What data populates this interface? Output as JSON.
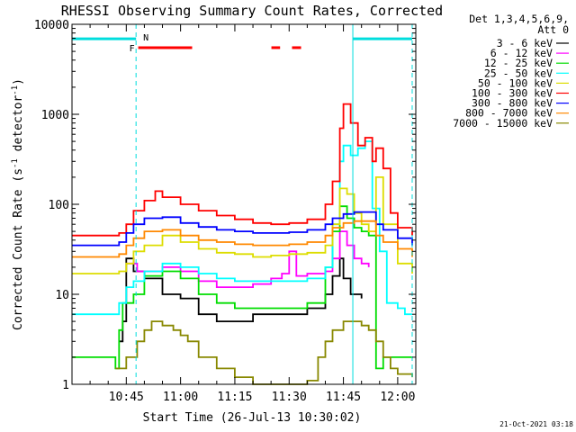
{
  "chart_data": {
    "type": "line",
    "title": "RHESSI Observing Summary Count Rates, Corrected",
    "xlabel": "Start Time (26-Jul-13 10:30:02)",
    "ylabel_main": "Corrected Count Rate (s",
    "ylabel_sup1": "-1",
    "ylabel_mid": " detector",
    "ylabel_sup2": "-1",
    "ylabel_end": ")",
    "yscale": "log",
    "ylim": [
      1,
      10000
    ],
    "xlim_minutes": [
      0,
      95
    ],
    "x_ticks": [
      {
        "m": 15,
        "label": "10:45"
      },
      {
        "m": 30,
        "label": "11:00"
      },
      {
        "m": 45,
        "label": "11:15"
      },
      {
        "m": 60,
        "label": "11:30"
      },
      {
        "m": 75,
        "label": "11:45"
      },
      {
        "m": 90,
        "label": "12:00"
      }
    ],
    "y_ticks": [
      {
        "v": 1,
        "label": "1"
      },
      {
        "v": 10,
        "label": "10"
      },
      {
        "v": 100,
        "label": "100"
      },
      {
        "v": 1000,
        "label": "1000"
      },
      {
        "v": 10000,
        "label": "10000"
      }
    ],
    "legend_header": [
      "Det 1,3,4,5,6,9,",
      "Att 0"
    ],
    "legend_position": "top-right-outside",
    "series": [
      {
        "name": "3 - 6 keV",
        "color": "#000000",
        "x": [
          0,
          11,
          13,
          14,
          15,
          17,
          20,
          25,
          30,
          35,
          40,
          45,
          50,
          55,
          60,
          65,
          70,
          72,
          74,
          75,
          77,
          80,
          82
        ],
        "y": [
          null,
          null,
          3,
          5,
          25,
          18,
          15,
          10,
          9,
          6,
          5,
          5,
          6,
          6,
          6,
          7,
          10,
          16,
          25,
          15,
          10,
          9,
          null
        ]
      },
      {
        "name": "6 - 12 keV",
        "color": "#ff00ff",
        "x": [
          15,
          18,
          20,
          25,
          30,
          35,
          40,
          45,
          50,
          55,
          58,
          60,
          62,
          65,
          70,
          72,
          74,
          76,
          78,
          80,
          82
        ],
        "y": [
          22,
          18,
          18,
          20,
          18,
          14,
          12,
          12,
          13,
          15,
          17,
          30,
          16,
          17,
          18,
          25,
          50,
          35,
          25,
          22,
          20
        ]
      },
      {
        "name": "12 - 25 keV",
        "color": "#00dd00",
        "x": [
          0,
          11,
          12,
          13,
          14,
          17,
          20,
          25,
          30,
          35,
          40,
          45,
          50,
          55,
          60,
          65,
          70,
          72,
          74,
          76,
          78,
          80,
          82,
          84,
          86,
          90,
          94
        ],
        "y": [
          2,
          2,
          1.5,
          4,
          8,
          10,
          16,
          18,
          15,
          10,
          8,
          7,
          7,
          7,
          7,
          8,
          20,
          50,
          95,
          70,
          55,
          50,
          45,
          1.5,
          2,
          2,
          2
        ]
      },
      {
        "name": "25 - 50 keV",
        "color": "#00ffff",
        "x": [
          0,
          11,
          13,
          15,
          17,
          20,
          25,
          30,
          35,
          40,
          45,
          50,
          55,
          60,
          65,
          70,
          72,
          74,
          75,
          77,
          79,
          81,
          83,
          85,
          87,
          90,
          92,
          94
        ],
        "y": [
          6,
          6,
          8,
          12,
          14,
          18,
          22,
          20,
          17,
          15,
          14,
          14,
          14,
          14,
          15,
          20,
          60,
          300,
          450,
          350,
          420,
          500,
          90,
          30,
          8,
          7,
          6,
          6
        ]
      },
      {
        "name": "50 - 100 keV",
        "color": "#dddd00",
        "x": [
          0,
          11,
          13,
          15,
          17,
          20,
          25,
          30,
          35,
          40,
          45,
          50,
          55,
          60,
          65,
          70,
          72,
          74,
          76,
          78,
          80,
          82,
          84,
          86,
          90,
          94
        ],
        "y": [
          17,
          17,
          18,
          22,
          30,
          35,
          45,
          38,
          32,
          29,
          28,
          26,
          27,
          28,
          29,
          35,
          60,
          150,
          130,
          80,
          60,
          50,
          200,
          60,
          22,
          17
        ]
      },
      {
        "name": "100 - 300 keV",
        "color": "#ff0000",
        "x": [
          0,
          11,
          13,
          15,
          17,
          20,
          23,
          25,
          30,
          35,
          40,
          45,
          50,
          55,
          60,
          65,
          70,
          72,
          74,
          75,
          77,
          79,
          81,
          83,
          84,
          86,
          88,
          90,
          94
        ],
        "y": [
          45,
          45,
          48,
          60,
          85,
          110,
          140,
          120,
          100,
          85,
          75,
          68,
          62,
          60,
          62,
          68,
          100,
          180,
          700,
          1300,
          800,
          450,
          550,
          300,
          420,
          250,
          80,
          55,
          45
        ]
      },
      {
        "name": "300 - 800 keV",
        "color": "#0000ff",
        "x": [
          0,
          11,
          13,
          15,
          17,
          20,
          25,
          30,
          35,
          40,
          45,
          50,
          55,
          60,
          65,
          70,
          72,
          75,
          78,
          82,
          84,
          86,
          90,
          94
        ],
        "y": [
          35,
          35,
          38,
          48,
          60,
          70,
          72,
          62,
          56,
          52,
          50,
          48,
          48,
          49,
          52,
          60,
          70,
          78,
          82,
          82,
          60,
          52,
          42,
          35
        ]
      },
      {
        "name": "800 - 7000 keV",
        "color": "#ff8800",
        "x": [
          0,
          11,
          13,
          15,
          17,
          20,
          25,
          30,
          35,
          40,
          45,
          50,
          55,
          60,
          65,
          70,
          72,
          75,
          78,
          82,
          84,
          86,
          90,
          94
        ],
        "y": [
          26,
          26,
          28,
          35,
          42,
          50,
          52,
          45,
          40,
          38,
          36,
          35,
          35,
          36,
          38,
          45,
          55,
          62,
          65,
          65,
          45,
          38,
          32,
          26
        ]
      },
      {
        "name": "7000 - 15000 keV",
        "color": "#888800",
        "x": [
          0,
          11,
          12,
          15,
          18,
          20,
          22,
          25,
          28,
          30,
          32,
          35,
          40,
          45,
          50,
          55,
          60,
          65,
          68,
          70,
          72,
          75,
          78,
          80,
          82,
          84,
          86,
          88,
          90,
          94
        ],
        "y": [
          null,
          null,
          1.5,
          2,
          3,
          4,
          5,
          4.5,
          4,
          3.5,
          3,
          2,
          1.5,
          1.2,
          1,
          1,
          1,
          1.1,
          2,
          3,
          4,
          5,
          5,
          4.5,
          4,
          3,
          2,
          1.5,
          1.3,
          1.2
        ]
      }
    ],
    "attenuator_line": {
      "label": "N",
      "color": "#00dddd",
      "value": 6900,
      "segments": [
        [
          0,
          17.7
        ],
        [
          77.6,
          94
        ]
      ]
    },
    "flare_flags": {
      "label": "F",
      "color": "#ff0000",
      "value": 5500,
      "segments": [
        [
          18.3,
          33.2
        ],
        [
          55.1,
          57.5
        ],
        [
          60.8,
          63.3
        ]
      ]
    },
    "vertical_markers": {
      "color": "#00dddd",
      "dashed_minutes": [
        17.7,
        94
      ],
      "solid_minutes": [
        77.6
      ]
    },
    "timestamp": "21-Oct-2021 03:18"
  }
}
